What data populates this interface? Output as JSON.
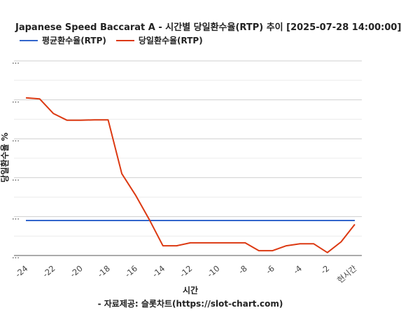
{
  "chart_data": {
    "type": "line",
    "title": "Japanese Speed Baccarat A - 시간별 당일환수율(RTP) 추이 [2025-07-28 14:00:00]",
    "xlabel": "시간",
    "ylabel": "당일환수율 %",
    "source": "- 자료제공: 슬롯차트(https://slot-chart.com)",
    "grid": true,
    "legend_position": "top-left",
    "y_tick_label": "...",
    "y_tick_count": 6,
    "x_ticks": [
      {
        "x": -24,
        "label": "-24"
      },
      {
        "x": -22,
        "label": "-22"
      },
      {
        "x": -20,
        "label": "-20"
      },
      {
        "x": -18,
        "label": "-18"
      },
      {
        "x": -16,
        "label": "-16"
      },
      {
        "x": -14,
        "label": "-14"
      },
      {
        "x": -12,
        "label": "-12"
      },
      {
        "x": -10,
        "label": "-10"
      },
      {
        "x": -8,
        "label": "-8"
      },
      {
        "x": -6,
        "label": "-6"
      },
      {
        "x": -4,
        "label": "-4"
      },
      {
        "x": -2,
        "label": "-2"
      },
      {
        "x": 0,
        "label": "현시간"
      }
    ],
    "xlim": [
      -24,
      0
    ],
    "ylim": [
      0,
      100
    ],
    "series": [
      {
        "name": "평균환수율(RTP)",
        "color": "#3366cc",
        "x": [
          -24,
          0
        ],
        "y": [
          18,
          18
        ]
      },
      {
        "name": "당일환수율(RTP)",
        "color": "#dc3912",
        "x": [
          -24,
          -23,
          -22,
          -21,
          -20,
          -19,
          -18,
          -17,
          -16,
          -15,
          -14,
          -13,
          -12,
          -11,
          -10,
          -9,
          -8,
          -7,
          -6,
          -5,
          -4,
          -3,
          -2,
          -1,
          0
        ],
        "y": [
          81,
          80.5,
          73,
          69.5,
          69.5,
          69.7,
          69.7,
          42,
          31,
          18.5,
          5,
          5,
          6.5,
          6.5,
          6.5,
          6.5,
          6.5,
          2.5,
          2.5,
          5,
          6,
          6,
          1.5,
          7,
          16
        ]
      }
    ]
  }
}
